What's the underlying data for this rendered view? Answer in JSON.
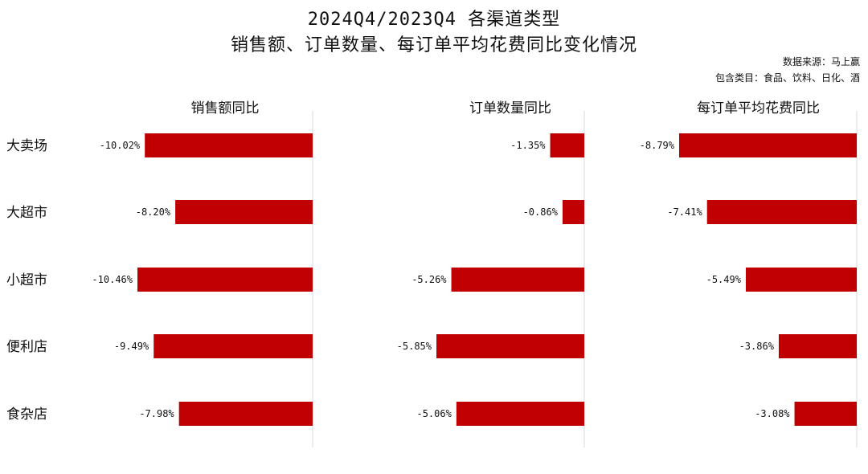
{
  "title_line1": "2024Q4/2023Q4 各渠道类型",
  "title_line2": "销售额、订单数量、每订单平均花费同比变化情况",
  "source": "数据来源：马上赢",
  "categories_note": "包含类目：食品、饮料、日化、酒",
  "colors": {
    "bar": "#c00000",
    "axis": "#d9d9d9",
    "text": "#111111"
  },
  "chart_data": [
    {
      "type": "bar",
      "orientation": "horizontal",
      "title": "销售额同比",
      "categories": [
        "大卖场",
        "大超市",
        "小超市",
        "便利店",
        "食杂店"
      ],
      "values": [
        -10.02,
        -8.2,
        -10.46,
        -9.49,
        -7.98
      ],
      "labels": [
        "-10.02%",
        "-8.20%",
        "-10.46%",
        "-9.49%",
        "-7.98%"
      ],
      "xlim": [
        -10.46,
        0
      ]
    },
    {
      "type": "bar",
      "orientation": "horizontal",
      "title": "订单数量同比",
      "categories": [
        "大卖场",
        "大超市",
        "小超市",
        "便利店",
        "食杂店"
      ],
      "values": [
        -1.35,
        -0.86,
        -5.26,
        -5.85,
        -5.06
      ],
      "labels": [
        "-1.35%",
        "-0.86%",
        "-5.26%",
        "-5.85%",
        "-5.06%"
      ],
      "xlim": [
        -5.85,
        0
      ]
    },
    {
      "type": "bar",
      "orientation": "horizontal",
      "title": "每订单平均花费同比",
      "categories": [
        "大卖场",
        "大超市",
        "小超市",
        "便利店",
        "食杂店"
      ],
      "values": [
        -8.79,
        -7.41,
        -5.49,
        -3.86,
        -3.08
      ],
      "labels": [
        "-8.79%",
        "-7.41%",
        "-5.49%",
        "-3.86%",
        "-3.08%"
      ],
      "xlim": [
        -8.79,
        0
      ]
    }
  ]
}
